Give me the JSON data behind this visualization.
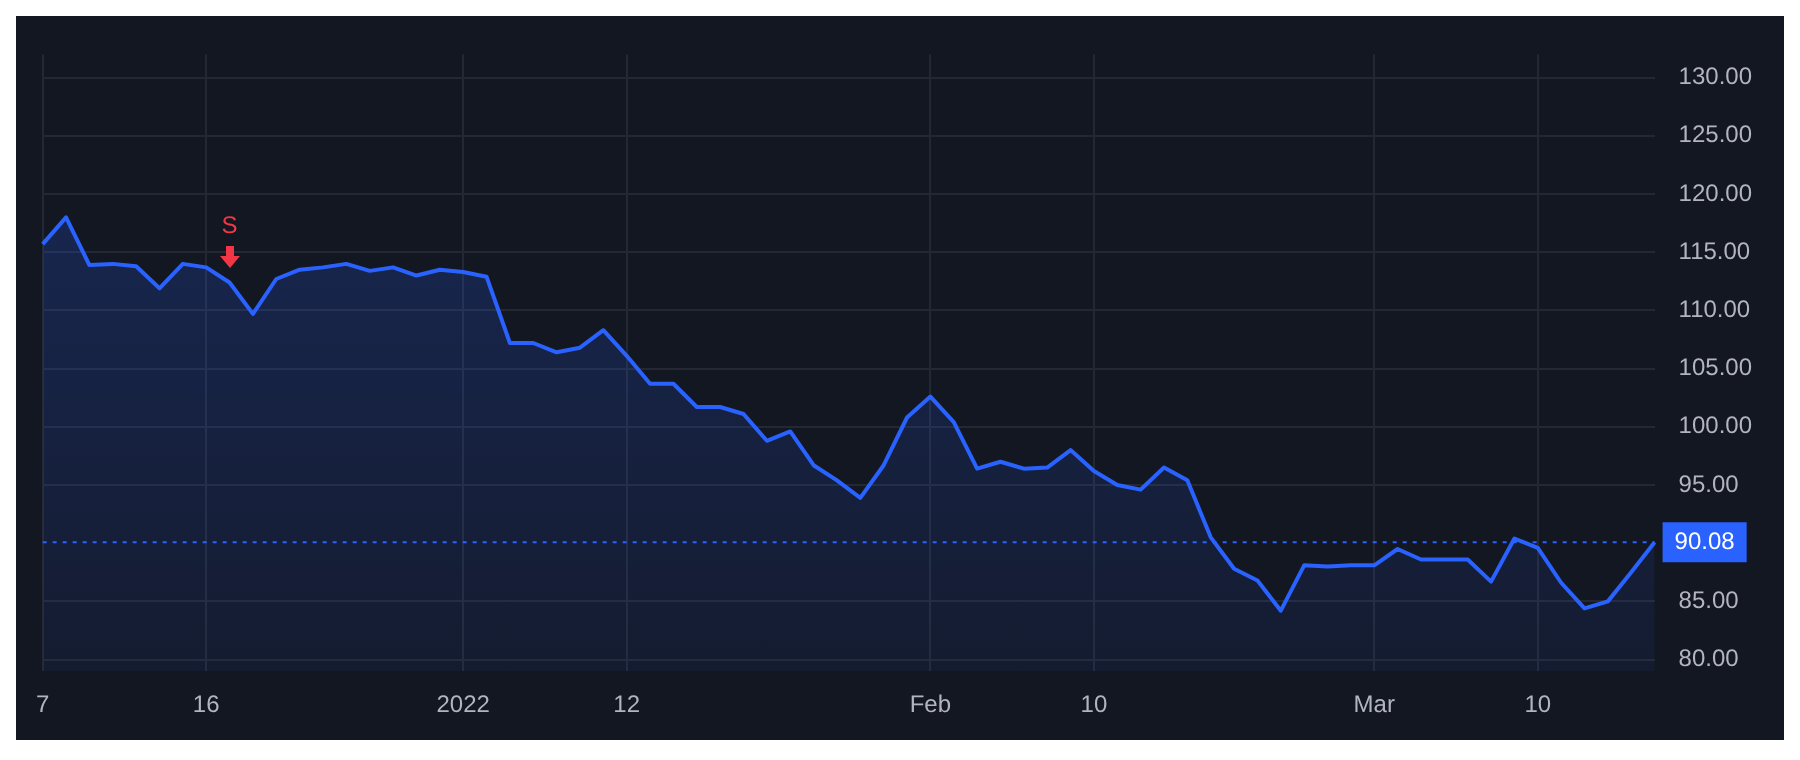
{
  "chart_data": {
    "type": "area",
    "categories": [
      "7",
      null,
      null,
      null,
      null,
      null,
      null,
      "16",
      null,
      null,
      null,
      null,
      null,
      null,
      null,
      null,
      null,
      null,
      "2022",
      null,
      null,
      null,
      null,
      null,
      null,
      "12",
      null,
      null,
      null,
      null,
      null,
      null,
      null,
      null,
      null,
      null,
      null,
      null,
      "Feb",
      null,
      null,
      null,
      null,
      null,
      null,
      "10",
      null,
      null,
      null,
      null,
      null,
      null,
      null,
      null,
      null,
      null,
      null,
      "Mar",
      null,
      null,
      null,
      null,
      null,
      null,
      "10",
      null,
      null,
      null,
      null,
      null
    ],
    "series": [
      {
        "color": "#2962ff",
        "values": [
          115.7,
          118,
          113.9,
          114,
          113.8,
          111.9,
          114,
          113.7,
          112.4,
          109.7,
          112.7,
          113.5,
          113.7,
          114,
          113.4,
          113.7,
          113,
          113.5,
          113.3,
          112.9,
          107.2,
          107.2,
          106.4,
          106.8,
          108.3,
          106.1,
          103.7,
          103.7,
          101.7,
          101.7,
          101.1,
          98.8,
          99.6,
          96.7,
          95.4,
          93.9,
          96.7,
          100.8,
          102.6,
          100.4,
          96.4,
          97,
          96.4,
          96.5,
          98,
          96.2,
          95,
          94.6,
          96.5,
          95.4,
          90.5,
          87.8,
          86.8,
          84.2,
          88.1,
          88,
          88.1,
          88.1,
          89.5,
          88.6,
          88.6,
          88.6,
          86.7,
          90.4,
          89.6,
          86.6,
          84.4,
          85,
          87.5,
          90.08
        ]
      }
    ],
    "ylim": [
      79,
      132
    ],
    "yticks": [
      {
        "value": 80,
        "label": "80.00"
      },
      {
        "value": 85,
        "label": "85.00"
      },
      {
        "value": 95,
        "label": "95.00"
      },
      {
        "value": 100,
        "label": "100.00"
      },
      {
        "value": 105,
        "label": "105.00"
      },
      {
        "value": 110,
        "label": "110.00"
      },
      {
        "value": 115,
        "label": "115.00"
      },
      {
        "value": 120,
        "label": "120.00"
      },
      {
        "value": 125,
        "label": "125.00"
      },
      {
        "value": 130,
        "label": "130.00"
      }
    ],
    "ref_lines": [
      {
        "axis": "y",
        "value": 90.08,
        "label": "90.08",
        "color": "#2962ff",
        "line_style": "dotted"
      }
    ],
    "annotations": [
      "S"
    ],
    "grid": true,
    "legend": false,
    "marker": "none",
    "line_style": "solid"
  }
}
